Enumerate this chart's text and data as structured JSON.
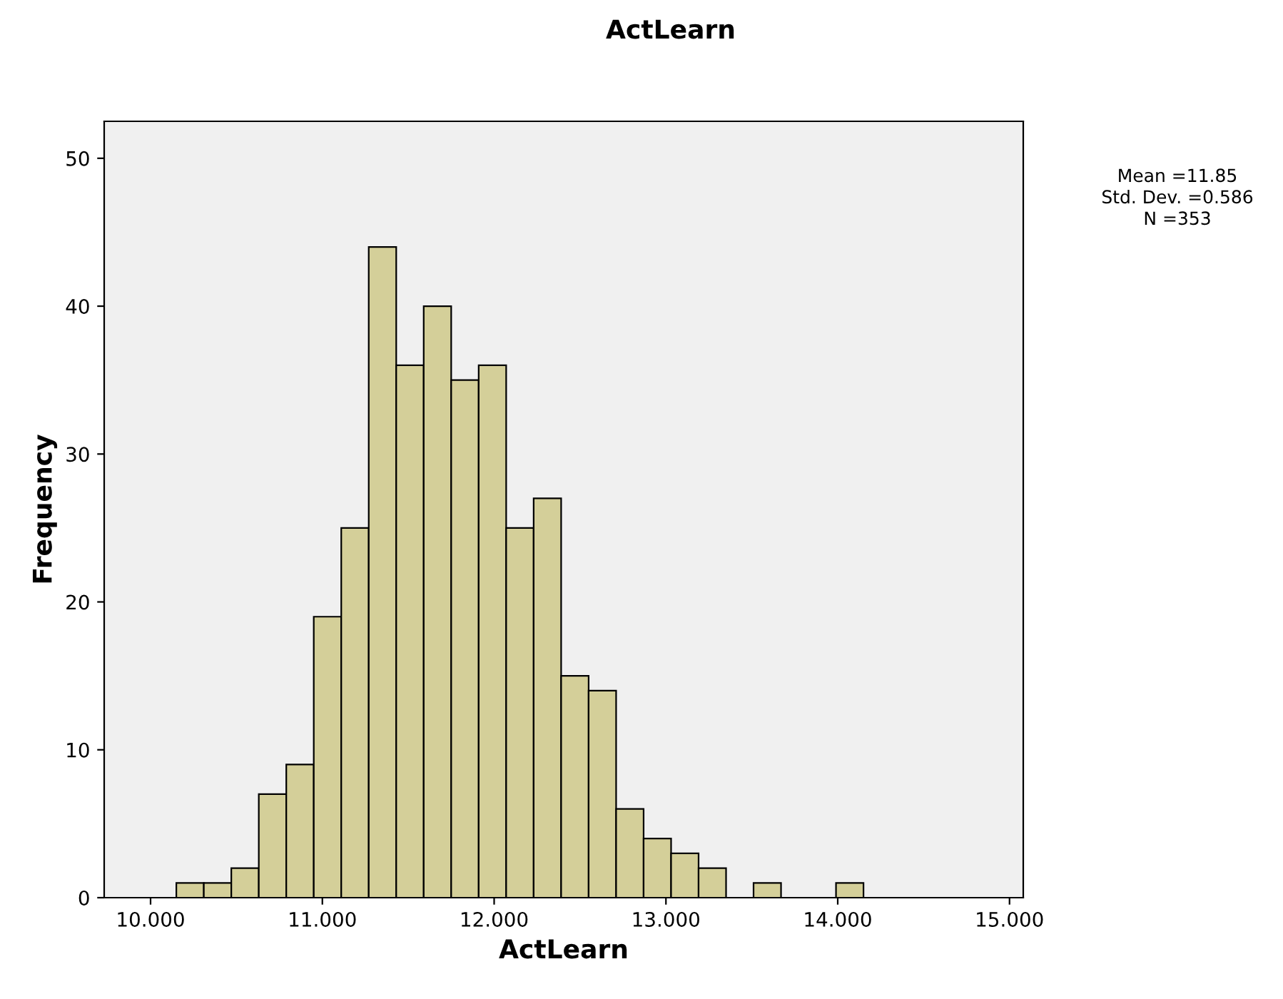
{
  "chart_data": {
    "type": "histogram",
    "title": "ActLearn",
    "xlabel": "ActLearn",
    "ylabel": "Frequency",
    "bins": [
      10.15,
      10.31,
      10.47,
      10.63,
      10.79,
      10.95,
      11.11,
      11.27,
      11.43,
      11.59,
      11.75,
      11.91,
      12.07,
      12.23,
      12.39,
      12.55,
      12.71,
      12.87,
      13.03,
      13.19,
      13.35,
      13.51,
      13.67,
      13.83,
      13.99,
      14.15
    ],
    "values": [
      1,
      1,
      2,
      7,
      9,
      19,
      25,
      44,
      36,
      40,
      35,
      36,
      25,
      27,
      15,
      14,
      6,
      4,
      3,
      2,
      0,
      1,
      0,
      0,
      1
    ],
    "color": "#d4cf99",
    "xlim": [
      9.73,
      15.08
    ],
    "xticks": [
      {
        "value": 10,
        "label": "10.000"
      },
      {
        "value": 11,
        "label": "11.000"
      },
      {
        "value": 12,
        "label": "12.000"
      },
      {
        "value": 13,
        "label": "13.000"
      },
      {
        "value": 14,
        "label": "14.000"
      },
      {
        "value": 15,
        "label": "15.000"
      }
    ],
    "ylim": [
      0,
      52.5
    ],
    "yticks": [
      0,
      10,
      20,
      30,
      40,
      50
    ],
    "annotations": [
      "Mean =11.85",
      "Std. Dev. =0.586",
      "N =353"
    ]
  }
}
